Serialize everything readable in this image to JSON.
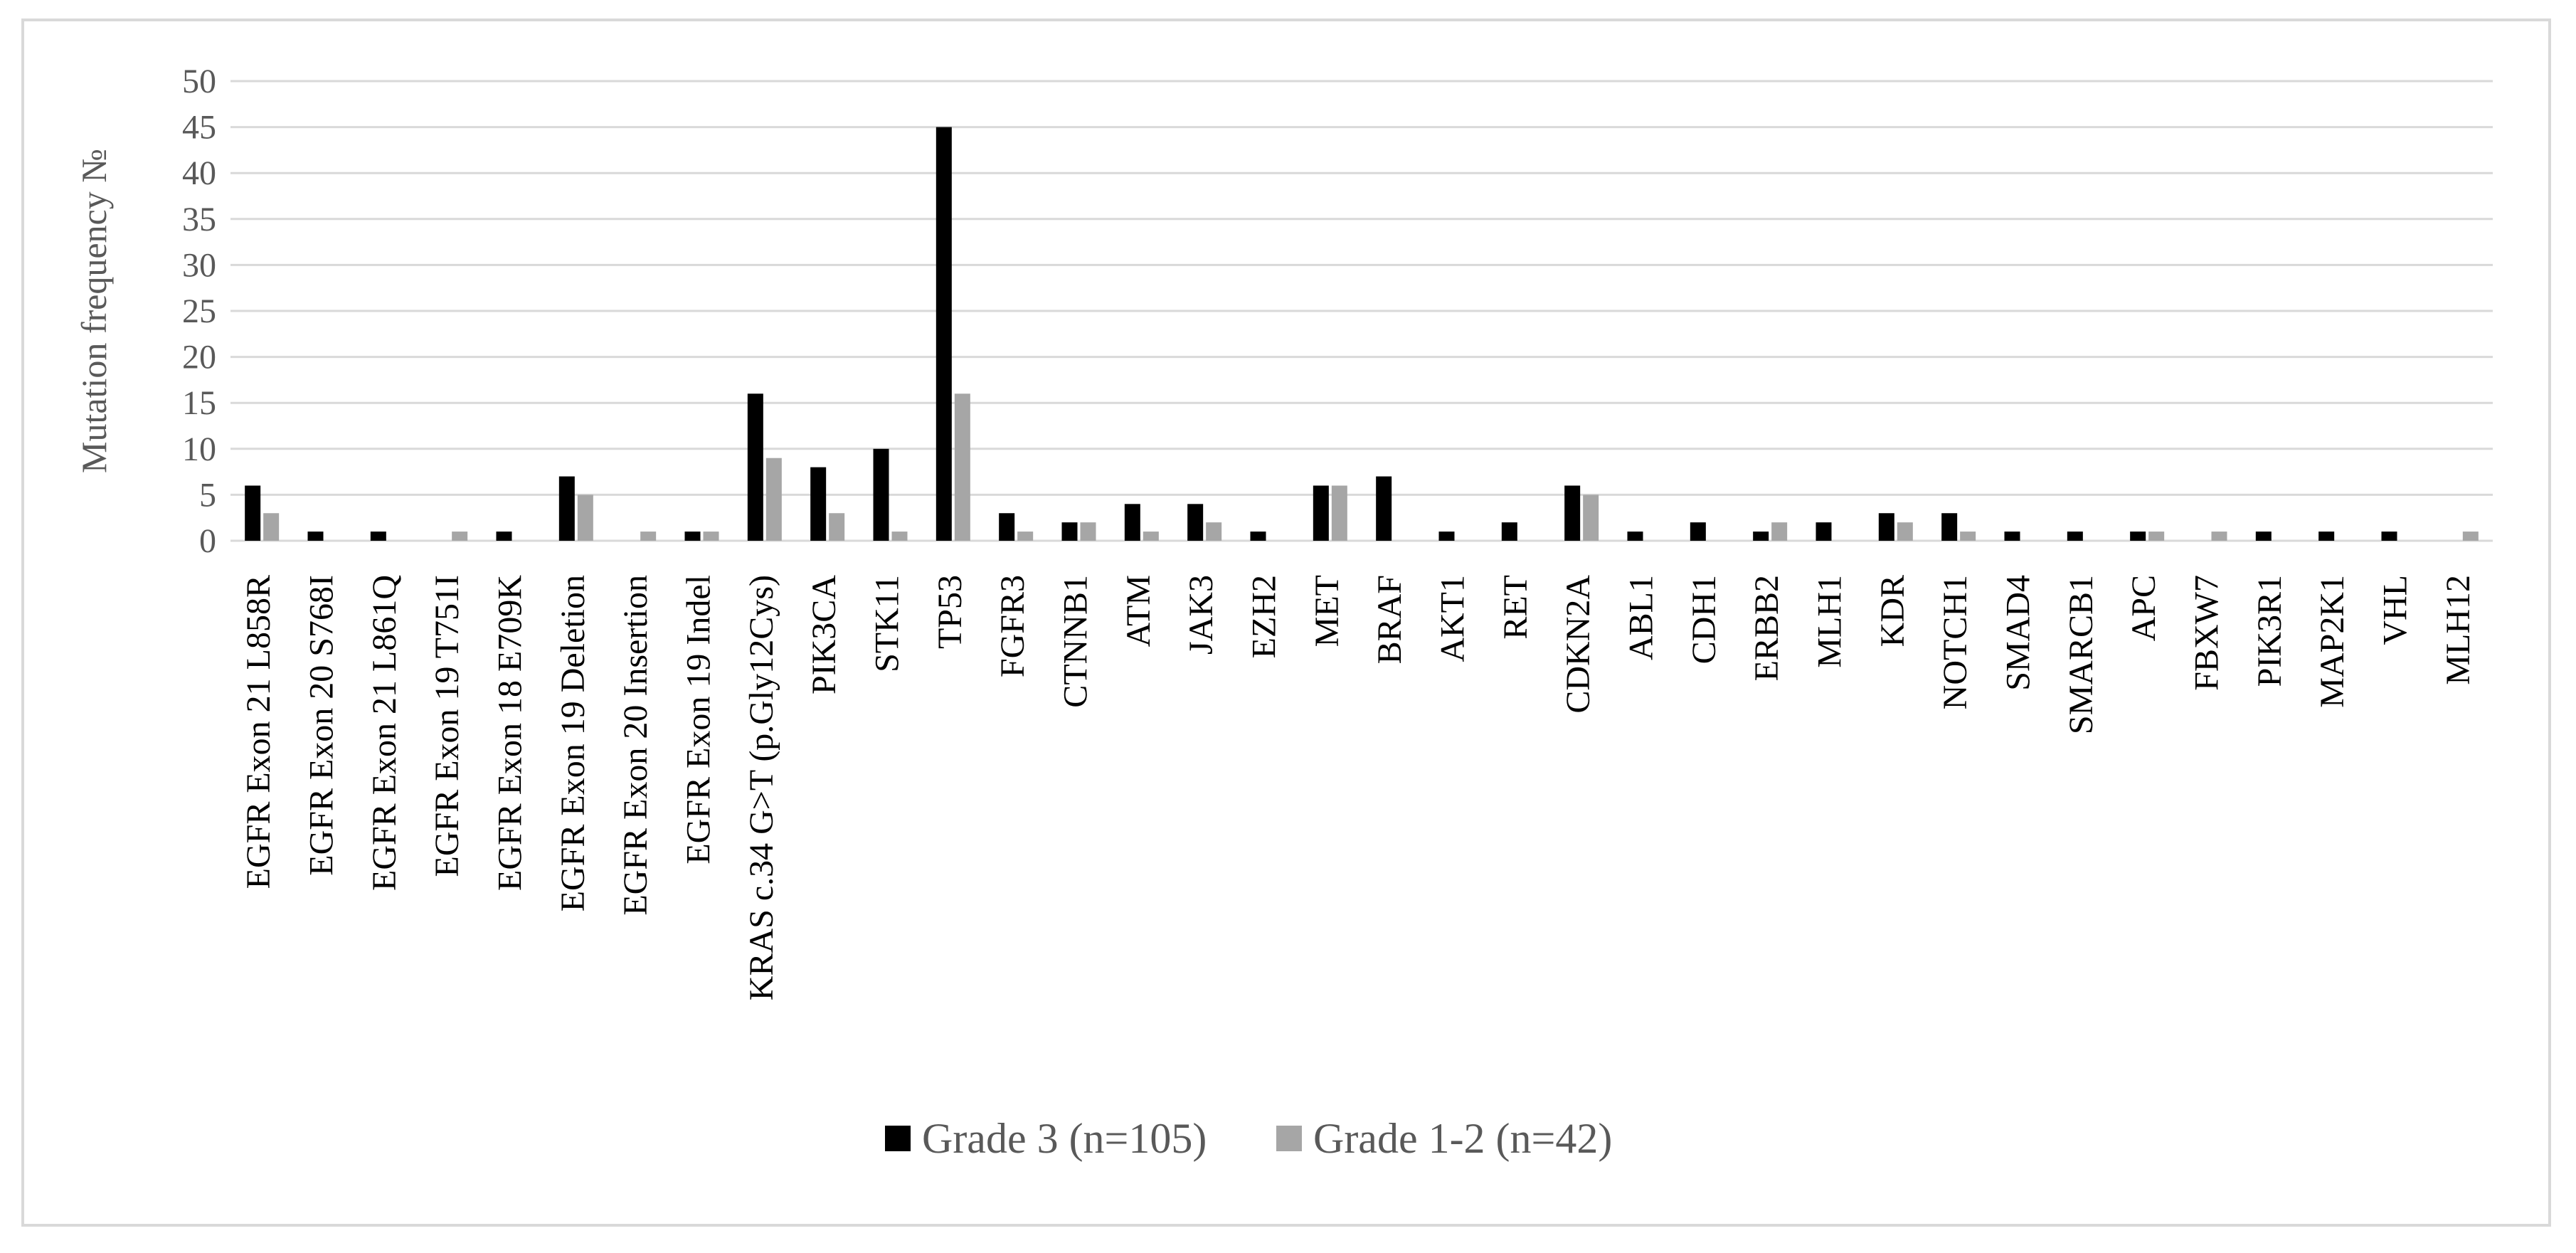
{
  "chart_data": {
    "type": "bar",
    "title": "",
    "xlabel": "",
    "ylabel": "Mutation frequency №",
    "ylim": [
      0,
      50
    ],
    "yticks": [
      0,
      5,
      10,
      15,
      20,
      25,
      30,
      35,
      40,
      45,
      50
    ],
    "grid": true,
    "legend_position": "bottom",
    "categories": [
      "EGFR Exon 21 L858R",
      "EGFR Exon 20 S768I",
      "EGFR Exon 21 L861Q",
      "EGFR Exon 19 T751I",
      "EGFR Exon 18 E709K",
      "EGFR Exon 19 Deletion",
      "EGFR Exon 20 Insertion",
      "EGFR Exon 19 Indel",
      "KRAS c.34 G>T (p.Gly12Cys)",
      "PIK3CA",
      "STK11",
      "TP53",
      "FGFR3",
      "CTNNB1",
      "ATM",
      "JAK3",
      "EZH2",
      "MET",
      "BRAF",
      "AKT1",
      "RET",
      "CDKN2A",
      "ABL1",
      "CDH1",
      "ERBB2",
      "MLH1",
      "KDR",
      "NOTCH1",
      "SMAD4",
      "SMARCB1",
      "APC",
      "FBXW7",
      "PIK3R1",
      "MAP2K1",
      "VHL",
      "MLH12"
    ],
    "series": [
      {
        "name": "Grade 3 (n=105)",
        "color": "#000000",
        "values": [
          6,
          1,
          1,
          0,
          1,
          7,
          0,
          1,
          16,
          8,
          10,
          45,
          3,
          2,
          4,
          4,
          1,
          6,
          7,
          1,
          2,
          6,
          1,
          2,
          1,
          2,
          3,
          3,
          1,
          1,
          1,
          0,
          1,
          1,
          1,
          0
        ]
      },
      {
        "name": "Grade 1-2 (n=42)",
        "color": "#a6a6a6",
        "values": [
          3,
          0,
          0,
          1,
          0,
          5,
          1,
          1,
          9,
          3,
          1,
          16,
          1,
          2,
          1,
          2,
          0,
          6,
          0,
          0,
          0,
          5,
          0,
          0,
          2,
          0,
          2,
          1,
          0,
          0,
          1,
          1,
          0,
          0,
          0,
          1
        ]
      }
    ],
    "colors": {
      "gridline": "#d9d9d9",
      "axis_text": "#595959",
      "category_text": "#000000",
      "frame": "#d9d9d9"
    }
  }
}
